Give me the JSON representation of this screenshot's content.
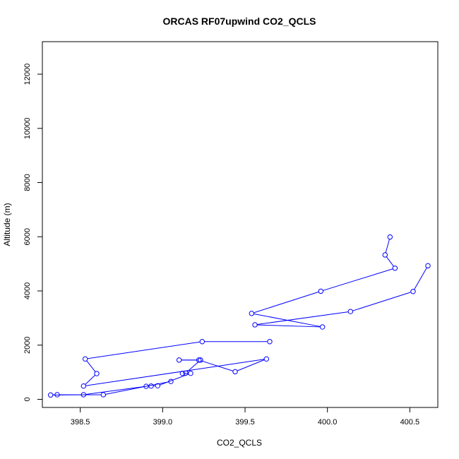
{
  "chart_data": {
    "type": "line",
    "title": "ORCAS RF07upwind CO2_QCLS",
    "xlabel": "CO2_QCLS",
    "ylabel": "Altitude (m)",
    "xlim": [
      398.27,
      400.67
    ],
    "ylim": [
      -300,
      13200
    ],
    "x_ticks": [
      398.5,
      399.0,
      399.5,
      400.0,
      400.5
    ],
    "x_tick_labels": [
      "398.5",
      "399.0",
      "399.5",
      "400.0",
      "400.5"
    ],
    "y_ticks": [
      0,
      2000,
      4000,
      6000,
      8000,
      10000,
      12000
    ],
    "y_tick_labels": [
      "0",
      "2000",
      "4000",
      "6000",
      "8000",
      "10000",
      "12000"
    ],
    "series_color": "#0000ff",
    "marker": "open-circle",
    "grid": false,
    "series": [
      {
        "x": [
          400.38,
          400.35,
          400.41,
          399.96,
          399.54,
          399.97,
          399.56,
          400.14,
          400.52,
          400.61
        ],
        "y": [
          5990,
          5330,
          4840,
          3990,
          3170,
          2670,
          2750,
          3240,
          3980,
          4930
        ]
      },
      {
        "x": [
          399.65,
          399.24,
          398.53,
          398.6,
          398.52,
          399.63,
          399.44,
          399.22,
          399.1,
          399.23,
          399.14,
          399.12,
          399.17,
          398.97,
          398.93,
          398.9,
          398.52,
          398.36,
          398.32,
          398.64,
          399.05
        ],
        "y": [
          2130,
          2130,
          1490,
          950,
          490,
          1490,
          1020,
          1450,
          1450,
          1450,
          970,
          960,
          960,
          500,
          490,
          480,
          170,
          170,
          160,
          170,
          660
        ]
      }
    ]
  }
}
